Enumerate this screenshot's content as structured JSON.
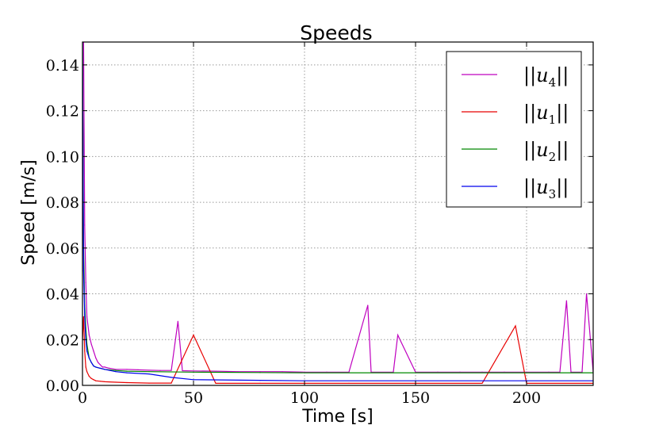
{
  "chart_data": {
    "type": "line",
    "title": "Speeds",
    "xlabel": "Time [s]",
    "ylabel": "Speed [m/s]",
    "xlim": [
      0,
      230
    ],
    "ylim": [
      0,
      0.15
    ],
    "xticks": [
      0,
      50,
      100,
      150,
      200
    ],
    "xtick_labels": [
      "0",
      "50",
      "100",
      "150",
      "200"
    ],
    "yticks": [
      0.0,
      0.02,
      0.04,
      0.06,
      0.08,
      0.1,
      0.12,
      0.14
    ],
    "ytick_labels": [
      "0.00",
      "0.02",
      "0.04",
      "0.06",
      "0.08",
      "0.10",
      "0.12",
      "0.14"
    ],
    "grid": true,
    "legend_position": "top-right",
    "series": [
      {
        "name": "||u_4||",
        "legend_label": "||u",
        "legend_sub": "4",
        "color": "#bf00bf",
        "x": [
          0,
          0.5,
          1,
          1.5,
          2,
          3,
          4,
          5,
          6,
          7,
          8,
          9,
          10,
          12,
          15,
          20,
          25,
          30,
          35,
          40,
          43,
          45,
          50,
          60,
          70,
          80,
          90,
          100,
          110,
          120,
          128.5,
          130,
          140,
          142,
          150,
          160,
          170,
          180,
          190,
          200,
          210,
          215,
          218,
          220,
          225,
          227,
          230
        ],
        "y": [
          0.15,
          0.15,
          0.07,
          0.045,
          0.03,
          0.022,
          0.018,
          0.015,
          0.012,
          0.01,
          0.009,
          0.008,
          0.008,
          0.0075,
          0.007,
          0.007,
          0.0068,
          0.0066,
          0.0065,
          0.0065,
          0.028,
          0.0064,
          0.0063,
          0.0062,
          0.006,
          0.006,
          0.006,
          0.0058,
          0.0058,
          0.0058,
          0.035,
          0.0058,
          0.0058,
          0.022,
          0.0058,
          0.0058,
          0.0058,
          0.0058,
          0.0058,
          0.0058,
          0.0058,
          0.0058,
          0.037,
          0.0058,
          0.0058,
          0.04,
          0.0058
        ]
      },
      {
        "name": "||u_1||",
        "legend_label": "||u",
        "legend_sub": "1",
        "color": "#e80000",
        "x": [
          0,
          0.5,
          1,
          1.5,
          2,
          3,
          4,
          5,
          6,
          8,
          10,
          15,
          20,
          30,
          40,
          50,
          60,
          80,
          100,
          120,
          150,
          180,
          195,
          200,
          230
        ],
        "y": [
          0.02,
          0.03,
          0.015,
          0.008,
          0.006,
          0.004,
          0.003,
          0.0025,
          0.002,
          0.0018,
          0.0016,
          0.0014,
          0.0012,
          0.001,
          0.001,
          0.022,
          0.0009,
          0.0009,
          0.0009,
          0.0009,
          0.0009,
          0.0009,
          0.026,
          0.0009,
          0.0009
        ]
      },
      {
        "name": "||u_2||",
        "legend_label": "||u",
        "legend_sub": "2",
        "color": "#008800",
        "x": [
          0,
          0.5,
          1,
          1.5,
          2,
          3,
          4,
          5,
          6,
          8,
          10,
          15,
          20,
          30,
          50,
          80,
          100,
          150,
          200,
          230
        ],
        "y": [
          0.15,
          0.06,
          0.035,
          0.025,
          0.018,
          0.012,
          0.01,
          0.0085,
          0.008,
          0.0075,
          0.007,
          0.0065,
          0.0062,
          0.006,
          0.0058,
          0.0056,
          0.0055,
          0.0055,
          0.0055,
          0.0055
        ]
      },
      {
        "name": "||u_3||",
        "legend_label": "||u",
        "legend_sub": "3",
        "color": "#0000ee",
        "x": [
          0,
          0.5,
          1,
          1.5,
          2,
          3,
          4,
          5,
          6,
          8,
          10,
          15,
          20,
          30,
          40,
          50,
          80,
          100,
          150,
          200,
          230
        ],
        "y": [
          0.15,
          0.05,
          0.03,
          0.02,
          0.015,
          0.012,
          0.01,
          0.0085,
          0.008,
          0.0075,
          0.007,
          0.006,
          0.0055,
          0.005,
          0.0035,
          0.0025,
          0.0022,
          0.002,
          0.002,
          0.002,
          0.002
        ]
      }
    ]
  }
}
